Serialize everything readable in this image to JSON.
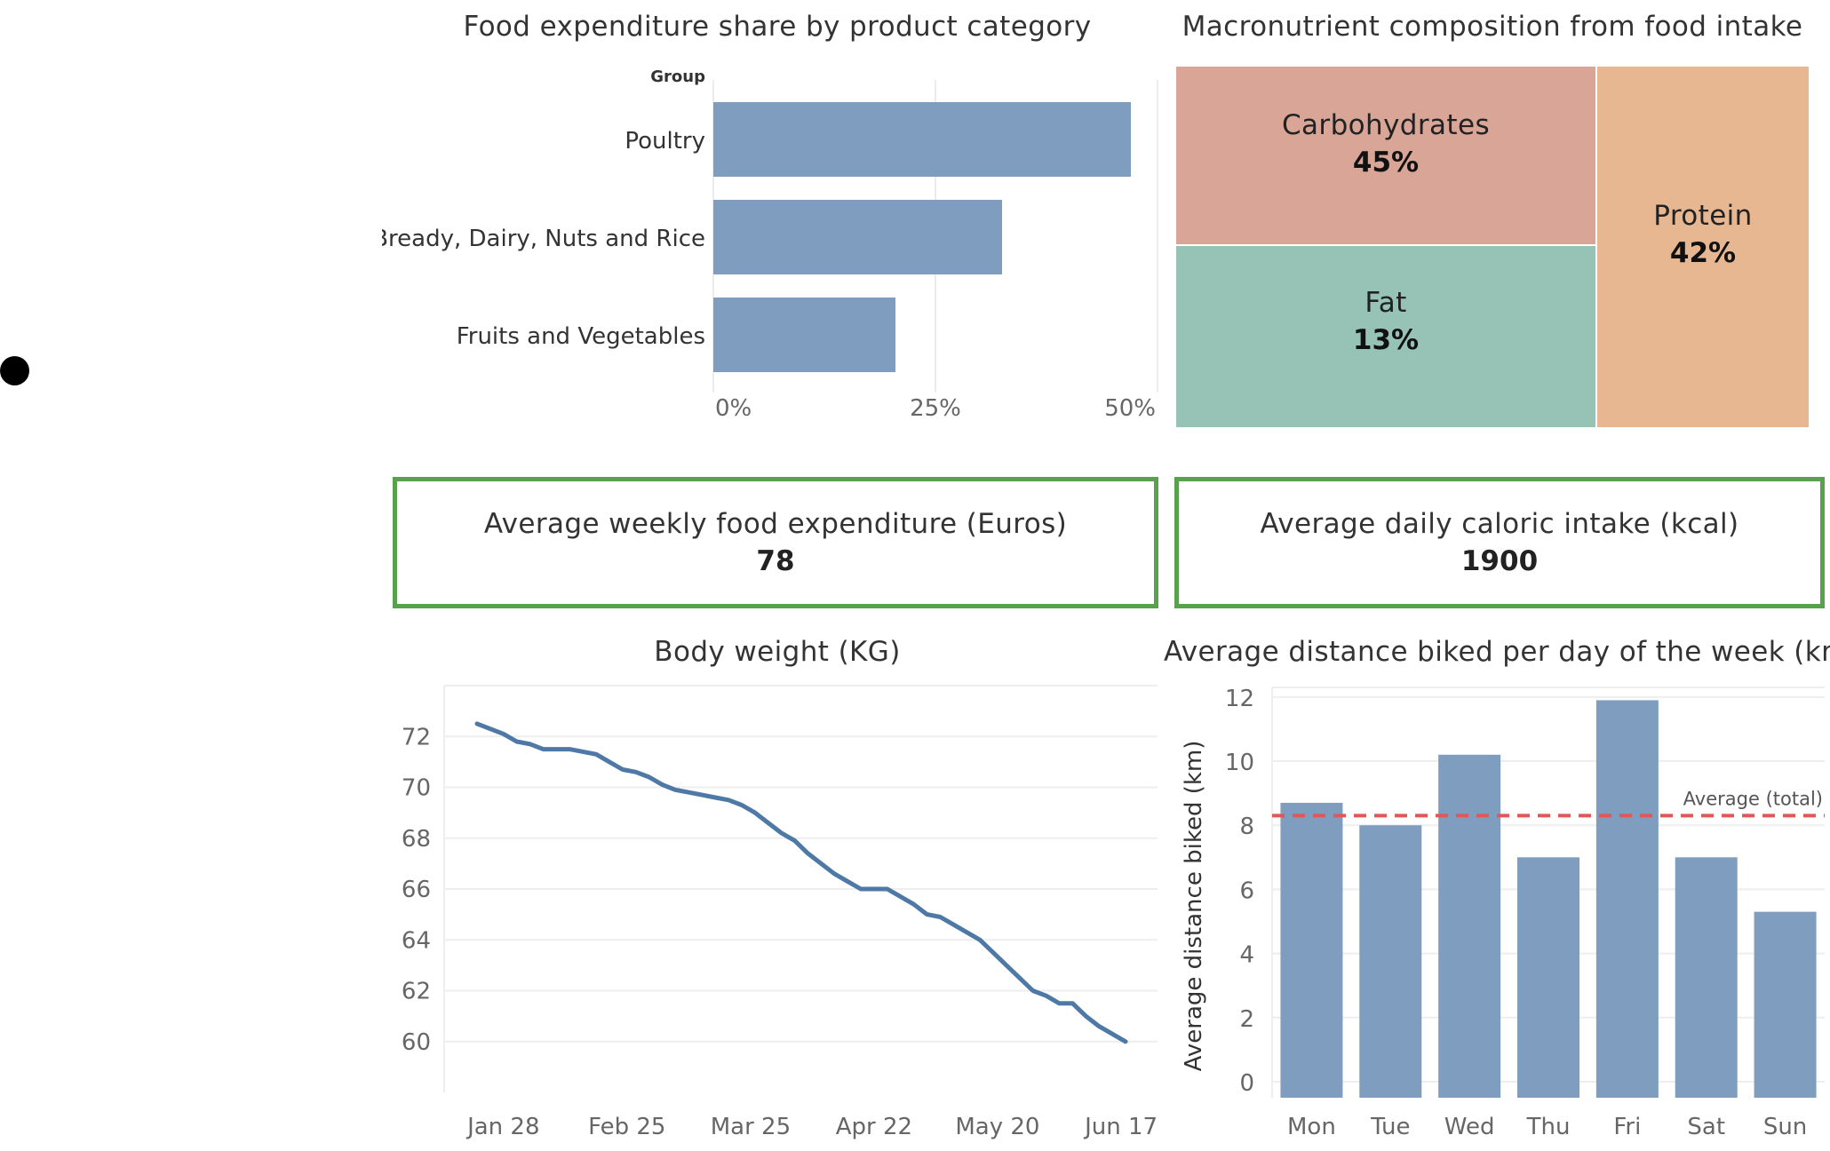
{
  "colors": {
    "bar": "#7f9dbe",
    "line": "#4e79a7",
    "kpi_border": "#59a14f",
    "avg_line": "#e15759",
    "carbs": "#d9a596",
    "fat": "#96c3b5",
    "protein": "#e7b792"
  },
  "chart_data": [
    {
      "type": "bar",
      "orientation": "horizontal",
      "title": "Food expenditure share by product category",
      "axis_header": "Group",
      "categories": [
        "Poultry",
        "Bready, Dairy, Nuts and Rice",
        "Fruits and Vegetables"
      ],
      "values": [
        0.47,
        0.325,
        0.205
      ],
      "xlim": [
        0,
        0.5
      ],
      "xticks": [
        0,
        0.25,
        0.5
      ],
      "xtick_labels": [
        "0%",
        "25%",
        "50%"
      ],
      "grid": true
    },
    {
      "type": "treemap",
      "title": "Macronutrient composition from food intake",
      "items": [
        {
          "name": "Carbohydrates",
          "label": "45%"
        },
        {
          "name": "Fat",
          "label": "13%"
        },
        {
          "name": "Protein",
          "label": "42%"
        }
      ]
    },
    {
      "type": "line",
      "title": "Body weight (KG)",
      "x": [
        "Jan 22",
        "Jan 25",
        "Jan 28",
        "Jan 31",
        "Feb 3",
        "Feb 6",
        "Feb 9",
        "Feb 12",
        "Feb 15",
        "Feb 18",
        "Feb 21",
        "Feb 24",
        "Feb 27",
        "Mar 2",
        "Mar 5",
        "Mar 8",
        "Mar 11",
        "Mar 14",
        "Mar 17",
        "Mar 20",
        "Mar 23",
        "Mar 26",
        "Mar 29",
        "Apr 1",
        "Apr 4",
        "Apr 7",
        "Apr 10",
        "Apr 13",
        "Apr 16",
        "Apr 19",
        "Apr 22",
        "Apr 25",
        "Apr 28",
        "May 1",
        "May 4",
        "May 7",
        "May 10",
        "May 13",
        "May 16",
        "May 19",
        "May 22",
        "May 25",
        "May 28",
        "May 31",
        "Jun 3",
        "Jun 6",
        "Jun 9",
        "Jun 12",
        "Jun 15",
        "Jun 18"
      ],
      "values": [
        72.5,
        72.3,
        72.1,
        71.8,
        71.7,
        71.5,
        71.5,
        71.5,
        71.4,
        71.3,
        71.0,
        70.7,
        70.6,
        70.4,
        70.1,
        69.9,
        69.8,
        69.7,
        69.6,
        69.5,
        69.3,
        69.0,
        68.6,
        68.2,
        67.9,
        67.4,
        67.0,
        66.6,
        66.3,
        66.0,
        66.0,
        66.0,
        65.7,
        65.4,
        65.0,
        64.9,
        64.6,
        64.3,
        64.0,
        63.5,
        63.0,
        62.5,
        62.0,
        61.8,
        61.5,
        61.5,
        61.0,
        60.6,
        60.3,
        60.0
      ],
      "xticks": [
        "Jan 28",
        "Feb 25",
        "Mar 25",
        "Apr 22",
        "May 20",
        "Jun 17"
      ],
      "yticks": [
        60,
        62,
        64,
        66,
        68,
        70,
        72
      ],
      "ylim": [
        58,
        74
      ],
      "grid": true
    },
    {
      "type": "bar",
      "title": "Average distance biked per day of the week (km)",
      "categories": [
        "Mon",
        "Tue",
        "Wed",
        "Thu",
        "Fri",
        "Sat",
        "Sun"
      ],
      "values": [
        8.7,
        8.0,
        10.2,
        7.0,
        11.9,
        7.0,
        5.3
      ],
      "ylabel": "Average distance biked (km)",
      "yticks": [
        0,
        2,
        4,
        6,
        8,
        10,
        12
      ],
      "ylim": [
        -0.5,
        12.3
      ],
      "reference_line": {
        "label": "Average (total)",
        "value": 8.3
      },
      "grid": true
    }
  ],
  "kpis": {
    "expenditure": {
      "label": "Average weekly food expenditure (Euros)",
      "value": "78"
    },
    "calories": {
      "label": "Average daily caloric intake (kcal)",
      "value": "1900"
    }
  }
}
